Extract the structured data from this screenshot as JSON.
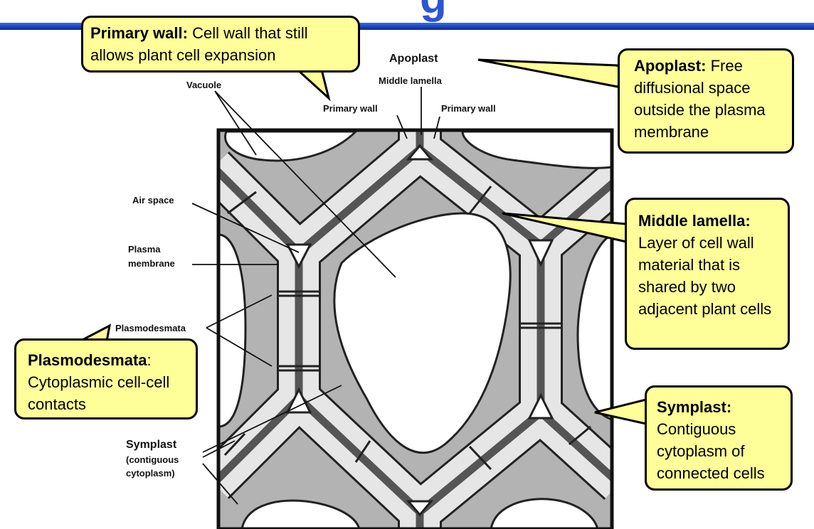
{
  "title_fragment": "g",
  "colors": {
    "callout_bg": "#ffff99",
    "cytoplasm": "#b3b3b3",
    "primary_wall": "#e6e6e6",
    "middle_lamella": "#555555",
    "banner": "#1c3fb8"
  },
  "callouts": {
    "primary_wall": {
      "term": "Primary wall:",
      "text": " Cell wall that still allows plant cell expansion"
    },
    "apoplast": {
      "term": "Apoplast:",
      "text": " Free diffusional space outside the plasma membrane"
    },
    "middle_lamella": {
      "term": "Middle lamella:",
      "text": " Layer of cell wall material that is shared by two adjacent plant cells"
    },
    "plasmodesmata": {
      "term": "Plasmodesmata",
      "text": ": Cytoplasmic cell-cell contacts"
    },
    "symplast": {
      "term": "Symplast:",
      "text": " Contiguous cytoplasm of connected cells"
    }
  },
  "labels": {
    "apoplast": "Apoplast",
    "middle_lamella": "Middle lamella",
    "primary_wall_left": "Primary wall",
    "primary_wall_right": "Primary wall",
    "vacuole": "Vacuole",
    "air_space": "Air space",
    "plasma_membrane_1": "Plasma",
    "plasma_membrane_2": "membrane",
    "plasmodesmata": "Plasmodesmata",
    "symplast_1": "Symplast",
    "symplast_2": "(contiguous",
    "symplast_3": "cytoplasm)"
  }
}
